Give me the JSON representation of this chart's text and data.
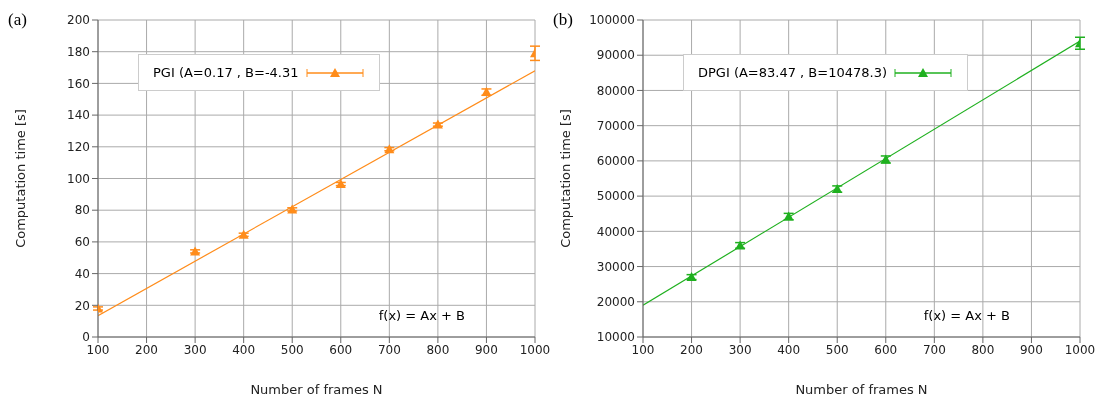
{
  "chart_data": [
    {
      "type": "scatter",
      "xlabel": "Number of frames N",
      "ylabel": "Computation time [s]",
      "annotations": [
        "(a)",
        "f(x) = Ax + B"
      ],
      "xlim": [
        100,
        1000
      ],
      "xticks": [
        100,
        200,
        300,
        400,
        500,
        600,
        700,
        800,
        900,
        1000
      ],
      "ylim": [
        0,
        200
      ],
      "yticks": [
        0,
        20,
        40,
        60,
        80,
        100,
        120,
        140,
        160,
        180,
        200
      ],
      "grid": true,
      "legend": "top left",
      "series": [
        {
          "name": "PGI (A=0.17 , B=-4.31",
          "color": "#ff8c1a",
          "marker": "triangle",
          "x": [
            100,
            300,
            400,
            500,
            600,
            700,
            800,
            900,
            1000
          ],
          "values": [
            18,
            54,
            64.5,
            80.5,
            96.5,
            118.5,
            134,
            154.5,
            179
          ],
          "errors": [
            1,
            1,
            1,
            1,
            1,
            1,
            1,
            2,
            4.5
          ]
        },
        {
          "type": "line",
          "color": "#ff8c1a",
          "marker": "none",
          "x": [
            100,
            1000
          ],
          "values": [
            13.5,
            168
          ]
        }
      ]
    },
    {
      "type": "scatter",
      "xlabel": "Number of frames N",
      "ylabel": "Computation time [s]",
      "annotations": [
        "(b)",
        "f(x) = Ax + B"
      ],
      "xlim": [
        100,
        1000
      ],
      "xticks": [
        100,
        200,
        300,
        400,
        500,
        600,
        700,
        800,
        900,
        1000
      ],
      "ylim": [
        10000,
        100000
      ],
      "yticks": [
        10000,
        20000,
        30000,
        40000,
        50000,
        60000,
        70000,
        80000,
        90000,
        100000
      ],
      "grid": true,
      "legend": "top left",
      "series": [
        {
          "name": "DPGI (A=83.47 , B=10478.3)",
          "color": "#1fb01f",
          "marker": "triangle",
          "x": [
            200,
            300,
            400,
            500,
            600,
            1000
          ],
          "values": [
            27000,
            36000,
            44200,
            52000,
            60400,
            93400
          ],
          "errors": [
            700,
            800,
            900,
            900,
            1000,
            1700
          ]
        },
        {
          "type": "line",
          "color": "#1fb01f",
          "marker": "none",
          "x": [
            100,
            1000
          ],
          "values": [
            19000,
            94000
          ]
        }
      ]
    }
  ]
}
